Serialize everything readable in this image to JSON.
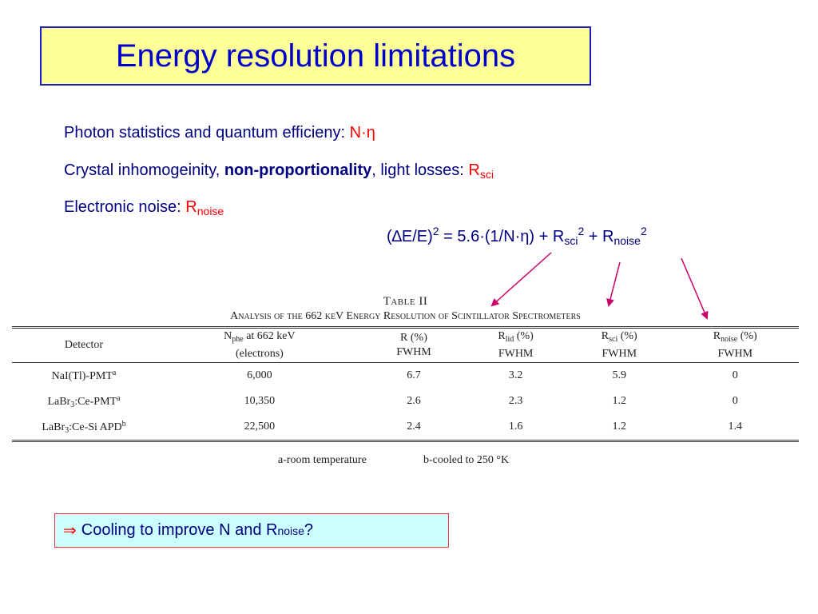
{
  "title": "Energy resolution limitations",
  "lines": {
    "photon": {
      "text": "Photon statistics and quantum efficieny: ",
      "symbol": "N·η"
    },
    "crystal": {
      "text_a": "Crystal inhomogeinity, ",
      "bold": "non-proportionality",
      "text_b": ", light losses: ",
      "symbol": "R",
      "symbol_sub": "sci"
    },
    "noise": {
      "text": "Electronic noise: ",
      "symbol": "R",
      "symbol_sub": "noise"
    }
  },
  "formula": {
    "part1": "(∆E/E)",
    "sup1": "2",
    "part2": " = 5.6·(1/N·η) + R",
    "sub2": "sci",
    "sup2": "2",
    "part3": " + R",
    "sub3": "noise",
    "sup3": "2"
  },
  "table": {
    "title": "Table II",
    "subtitle": "Analysis of the 662 keV Energy Resolution of Scintillator Spectrometers",
    "headers": [
      {
        "line1": "Detector",
        "line2": ""
      },
      {
        "line1_main": "N",
        "line1_sub": "phe",
        "line1_rest": " at 662 keV",
        "line2": "(electrons)"
      },
      {
        "line1": "R (%)",
        "line2": "FWHM"
      },
      {
        "line1_main": "R",
        "line1_sub": "lid",
        "line1_rest": " (%)",
        "line2": "FWHM"
      },
      {
        "line1_main": "R",
        "line1_sub": "sci",
        "line1_rest": " (%)",
        "line2": "FWHM"
      },
      {
        "line1_main": "R",
        "line1_sub": "noise",
        "line1_rest": " (%)",
        "line2": "FWHM"
      }
    ],
    "rows": [
      {
        "det_a": "NaI(Tl)-PMT",
        "det_sub": "",
        "det_b": "",
        "det_sup": "a",
        "nphe": "6,000",
        "r": "6.7",
        "rlid": "3.2",
        "rsci": "5.9",
        "rnoise": "0"
      },
      {
        "det_a": "LaBr",
        "det_sub": "3",
        "det_b": ":Ce-PMT",
        "det_sup": "a",
        "nphe": "10,350",
        "r": "2.6",
        "rlid": "2.3",
        "rsci": "1.2",
        "rnoise": "0"
      },
      {
        "det_a": "LaBr",
        "det_sub": "3",
        "det_b": ":Ce-Si APD",
        "det_sup": "b",
        "nphe": "22,500",
        "r": "2.4",
        "rlid": "1.6",
        "rsci": "1.2",
        "rnoise": "1.4"
      }
    ],
    "footnotes": {
      "a": "a-room temperature",
      "b": "b-cooled to 250 °K"
    }
  },
  "conclusion": {
    "arrow": "⇒",
    "text": "Cooling to improve N and R",
    "sub": "noise",
    "end": "?"
  },
  "colors": {
    "title_bg": "#ffff99",
    "title_border": "#1c1cc0",
    "text": "#000080",
    "accent": "#ff0000",
    "arrow": "#cc0066",
    "conclusion_bg": "#ccffff"
  }
}
